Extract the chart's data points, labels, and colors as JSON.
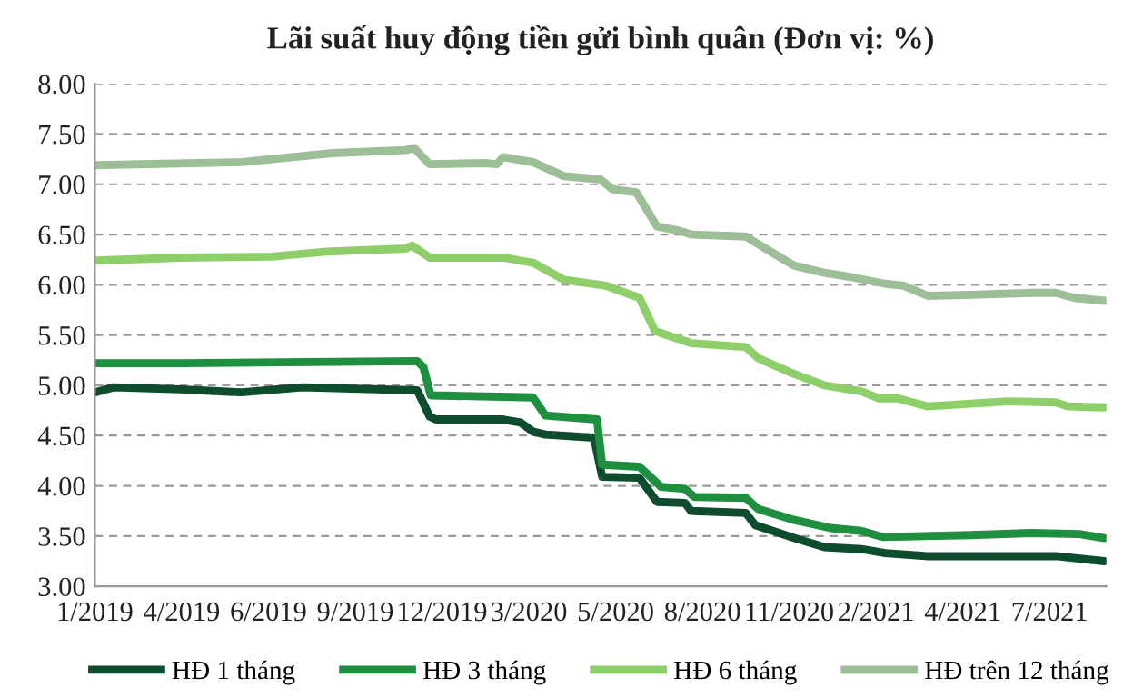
{
  "chart_data": {
    "type": "line",
    "title": "Lãi suất huy động tiền gửi bình quân (Đơn vị: %)",
    "xlim": [
      "2019-01-09",
      "2021-09-14"
    ],
    "xticks": [
      {
        "value": "2019-01-09",
        "label": "1/2019"
      },
      {
        "value": "2019-04-03",
        "label": "4/2019"
      },
      {
        "value": "2019-06-26",
        "label": "6/2019"
      },
      {
        "value": "2019-09-18",
        "label": "9/2019"
      },
      {
        "value": "2019-12-11",
        "label": "12/2019"
      },
      {
        "value": "2020-03-04",
        "label": "3/2020"
      },
      {
        "value": "2020-05-27",
        "label": "5/2020"
      },
      {
        "value": "2020-08-19",
        "label": "8/2020"
      },
      {
        "value": "2020-11-11",
        "label": "11/2020"
      },
      {
        "value": "2021-02-03",
        "label": "2/2021"
      },
      {
        "value": "2021-04-28",
        "label": "4/2021"
      },
      {
        "value": "2021-07-21",
        "label": "7/2021"
      }
    ],
    "ylim": [
      3,
      8
    ],
    "yticks": [
      {
        "value": 3,
        "label": "3.00"
      },
      {
        "value": 3.5,
        "label": "3.50"
      },
      {
        "value": 4,
        "label": "4.00"
      },
      {
        "value": 4.5,
        "label": "4.50"
      },
      {
        "value": 5,
        "label": "5.00"
      },
      {
        "value": 5.5,
        "label": "5.50"
      },
      {
        "value": 6,
        "label": "6.00"
      },
      {
        "value": 6.5,
        "label": "6.50"
      },
      {
        "value": 7,
        "label": "7.00"
      },
      {
        "value": 7.5,
        "label": "7.50"
      },
      {
        "value": 8,
        "label": "8.00"
      }
    ],
    "grid": "y",
    "legend": "bottom",
    "marker": "none",
    "line_style": "solid",
    "series": [
      {
        "name": "HĐ 1 tháng",
        "color": "#0d4d2e",
        "x": [
          "2019-01-09",
          "2019-01-27",
          "2019-04-02",
          "2019-05-31",
          "2019-07-29",
          "2019-11-17",
          "2019-11-29",
          "2019-12-05",
          "2020-02-08",
          "2020-02-25",
          "2020-03-08",
          "2020-03-20",
          "2020-05-06",
          "2020-05-14",
          "2020-06-19",
          "2020-07-06",
          "2020-08-02",
          "2020-08-08",
          "2020-09-30",
          "2020-10-09",
          "2020-11-16",
          "2020-12-15",
          "2021-01-20",
          "2021-02-12",
          "2021-03-25",
          "2021-07-27",
          "2021-09-12"
        ],
        "values": [
          4.93,
          4.98,
          4.96,
          4.93,
          4.98,
          4.95,
          4.69,
          4.66,
          4.66,
          4.63,
          4.54,
          4.51,
          4.48,
          4.09,
          4.08,
          3.84,
          3.83,
          3.75,
          3.73,
          3.61,
          3.48,
          3.39,
          3.37,
          3.33,
          3.3,
          3.3,
          3.25
        ]
      },
      {
        "name": "HĐ 3 tháng",
        "color": "#1e8f3e",
        "x": [
          "2019-01-09",
          "2019-04-02",
          "2019-11-17",
          "2019-11-23",
          "2019-11-30",
          "2020-03-08",
          "2020-03-20",
          "2020-05-09",
          "2020-05-14",
          "2020-06-19",
          "2020-07-10",
          "2020-08-02",
          "2020-08-11",
          "2020-09-30",
          "2020-10-12",
          "2020-11-16",
          "2020-12-21",
          "2021-01-20",
          "2021-02-10",
          "2021-05-06",
          "2021-07-03",
          "2021-08-19",
          "2021-09-12"
        ],
        "values": [
          5.22,
          5.22,
          5.24,
          5.18,
          4.9,
          4.88,
          4.7,
          4.66,
          4.21,
          4.19,
          3.99,
          3.97,
          3.89,
          3.88,
          3.77,
          3.66,
          3.58,
          3.55,
          3.49,
          3.51,
          3.53,
          3.52,
          3.48
        ]
      },
      {
        "name": "HĐ 6 tháng",
        "color": "#8fcf6a",
        "x": [
          "2019-01-09",
          "2019-04-02",
          "2019-06-29",
          "2019-08-21",
          "2019-11-06",
          "2019-11-12",
          "2019-11-29",
          "2020-02-08",
          "2020-03-08",
          "2020-04-07",
          "2020-05-18",
          "2020-06-19",
          "2020-07-04",
          "2020-08-08",
          "2020-09-30",
          "2020-10-12",
          "2020-11-14",
          "2020-12-15",
          "2021-01-20",
          "2021-02-06",
          "2021-02-24",
          "2021-03-25",
          "2021-06-10",
          "2021-07-27",
          "2021-08-08",
          "2021-09-12"
        ],
        "values": [
          6.24,
          6.27,
          6.28,
          6.33,
          6.36,
          6.39,
          6.27,
          6.27,
          6.22,
          6.05,
          5.99,
          5.87,
          5.54,
          5.42,
          5.38,
          5.27,
          5.12,
          5.0,
          4.94,
          4.87,
          4.87,
          4.79,
          4.84,
          4.83,
          4.79,
          4.78
        ]
      },
      {
        "name": "HĐ trên 12 tháng",
        "color": "#9dbf98",
        "x": [
          "2019-01-09",
          "2019-05-31",
          "2019-08-27",
          "2019-11-06",
          "2019-11-14",
          "2019-11-29",
          "2020-01-21",
          "2020-02-02",
          "2020-02-08",
          "2020-03-08",
          "2020-04-07",
          "2020-05-12",
          "2020-05-24",
          "2020-06-16",
          "2020-07-06",
          "2020-07-27",
          "2020-08-08",
          "2020-09-30",
          "2020-10-24",
          "2020-11-16",
          "2020-12-15",
          "2021-01-08",
          "2021-02-12",
          "2021-03-02",
          "2021-03-25",
          "2021-05-06",
          "2021-07-03",
          "2021-07-27",
          "2021-08-14",
          "2021-09-12"
        ],
        "values": [
          7.19,
          7.22,
          7.31,
          7.34,
          7.36,
          7.2,
          7.21,
          7.2,
          7.27,
          7.22,
          7.08,
          7.05,
          6.95,
          6.92,
          6.58,
          6.54,
          6.5,
          6.48,
          6.33,
          6.19,
          6.12,
          6.08,
          6.01,
          5.99,
          5.89,
          5.9,
          5.92,
          5.92,
          5.87,
          5.84
        ]
      }
    ]
  }
}
